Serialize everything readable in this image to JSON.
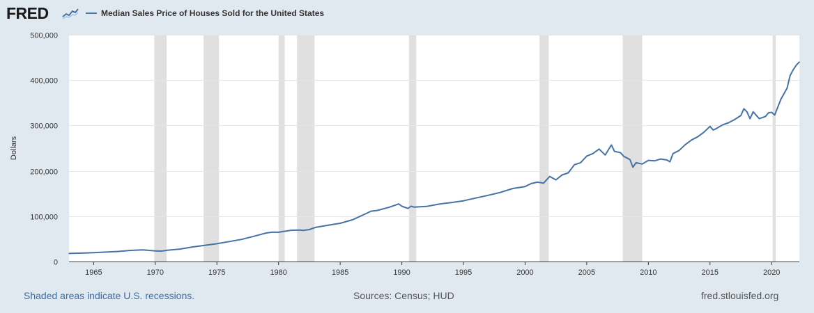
{
  "brand": {
    "logo_text": "FRED",
    "logo_icon": "line-chart-icon"
  },
  "chart_data": {
    "type": "line",
    "title": "Median Sales Price of Houses Sold for the United States",
    "xlabel": "",
    "ylabel": "Dollars",
    "xlim": [
      1963.0,
      2022.25
    ],
    "ylim": [
      0,
      500000
    ],
    "x_ticks": [
      1965,
      1970,
      1975,
      1980,
      1985,
      1990,
      1995,
      2000,
      2005,
      2010,
      2015,
      2020
    ],
    "y_ticks": [
      0,
      100000,
      200000,
      300000,
      400000,
      500000
    ],
    "y_tick_labels": [
      "0",
      "100,000",
      "200,000",
      "300,000",
      "400,000",
      "500,000"
    ],
    "grid": "horizontal",
    "line_color": "#4572a7",
    "recession_color": "#e0e0e0",
    "recessions": [
      [
        1969.92,
        1970.92
      ],
      [
        1973.92,
        1975.17
      ],
      [
        1980.0,
        1980.5
      ],
      [
        1981.5,
        1982.92
      ],
      [
        1990.58,
        1991.17
      ],
      [
        2001.17,
        2001.92
      ],
      [
        2007.92,
        2009.5
      ],
      [
        2020.08,
        2020.33
      ]
    ],
    "series": [
      {
        "name": "Median Sales Price of Houses Sold for the United States",
        "points": [
          [
            1963.0,
            17800
          ],
          [
            1964.0,
            18500
          ],
          [
            1965.0,
            19500
          ],
          [
            1966.0,
            20800
          ],
          [
            1967.0,
            22300
          ],
          [
            1968.0,
            24500
          ],
          [
            1969.0,
            25700
          ],
          [
            1970.0,
            23500
          ],
          [
            1970.5,
            23000
          ],
          [
            1971.0,
            25000
          ],
          [
            1972.0,
            27500
          ],
          [
            1973.0,
            32000
          ],
          [
            1974.0,
            35800
          ],
          [
            1975.0,
            39300
          ],
          [
            1976.0,
            44000
          ],
          [
            1977.0,
            48800
          ],
          [
            1978.0,
            55700
          ],
          [
            1979.0,
            62900
          ],
          [
            1979.5,
            64800
          ],
          [
            1980.0,
            64500
          ],
          [
            1981.0,
            68900
          ],
          [
            1981.75,
            69500
          ],
          [
            1982.0,
            68500
          ],
          [
            1982.5,
            70500
          ],
          [
            1983.0,
            75300
          ],
          [
            1984.0,
            79900
          ],
          [
            1985.0,
            84300
          ],
          [
            1986.0,
            92000
          ],
          [
            1987.0,
            104500
          ],
          [
            1987.5,
            111000
          ],
          [
            1988.0,
            112500
          ],
          [
            1989.0,
            120000
          ],
          [
            1989.75,
            127000
          ],
          [
            1990.0,
            122000
          ],
          [
            1990.5,
            117000
          ],
          [
            1990.75,
            122000
          ],
          [
            1991.0,
            120000
          ],
          [
            1992.0,
            121500
          ],
          [
            1993.0,
            126500
          ],
          [
            1994.0,
            130000
          ],
          [
            1995.0,
            133900
          ],
          [
            1996.0,
            140000
          ],
          [
            1997.0,
            146000
          ],
          [
            1998.0,
            152500
          ],
          [
            1999.0,
            161000
          ],
          [
            2000.0,
            165300
          ],
          [
            2000.5,
            172000
          ],
          [
            2001.0,
            175000
          ],
          [
            2001.5,
            173000
          ],
          [
            2002.0,
            187600
          ],
          [
            2002.5,
            180000
          ],
          [
            2003.0,
            191000
          ],
          [
            2003.5,
            195500
          ],
          [
            2004.0,
            213500
          ],
          [
            2004.5,
            218000
          ],
          [
            2005.0,
            232500
          ],
          [
            2005.5,
            238000
          ],
          [
            2006.0,
            248000
          ],
          [
            2006.5,
            235000
          ],
          [
            2007.0,
            257000
          ],
          [
            2007.25,
            243000
          ],
          [
            2007.75,
            240000
          ],
          [
            2008.0,
            232000
          ],
          [
            2008.5,
            225000
          ],
          [
            2008.75,
            208000
          ],
          [
            2009.0,
            218000
          ],
          [
            2009.5,
            215000
          ],
          [
            2010.0,
            223000
          ],
          [
            2010.5,
            222000
          ],
          [
            2011.0,
            226000
          ],
          [
            2011.5,
            224000
          ],
          [
            2011.75,
            220000
          ],
          [
            2012.0,
            238000
          ],
          [
            2012.5,
            245000
          ],
          [
            2013.0,
            258000
          ],
          [
            2013.5,
            268000
          ],
          [
            2014.0,
            275000
          ],
          [
            2014.5,
            285000
          ],
          [
            2015.0,
            298000
          ],
          [
            2015.25,
            290000
          ],
          [
            2015.5,
            293000
          ],
          [
            2016.0,
            301000
          ],
          [
            2016.5,
            306000
          ],
          [
            2017.0,
            313000
          ],
          [
            2017.5,
            322000
          ],
          [
            2017.75,
            337000
          ],
          [
            2018.0,
            330000
          ],
          [
            2018.25,
            315000
          ],
          [
            2018.5,
            330000
          ],
          [
            2019.0,
            315000
          ],
          [
            2019.5,
            320000
          ],
          [
            2019.75,
            328000
          ],
          [
            2020.0,
            329000
          ],
          [
            2020.25,
            323000
          ],
          [
            2020.75,
            358000
          ],
          [
            2021.0,
            370000
          ],
          [
            2021.25,
            382000
          ],
          [
            2021.5,
            410000
          ],
          [
            2021.75,
            423000
          ],
          [
            2022.0,
            433000
          ],
          [
            2022.25,
            440000
          ]
        ]
      }
    ]
  },
  "footer": {
    "recessions_note": "Shaded areas indicate U.S. recessions.",
    "sources": "Sources: Census; HUD",
    "site": "fred.stlouisfed.org"
  }
}
